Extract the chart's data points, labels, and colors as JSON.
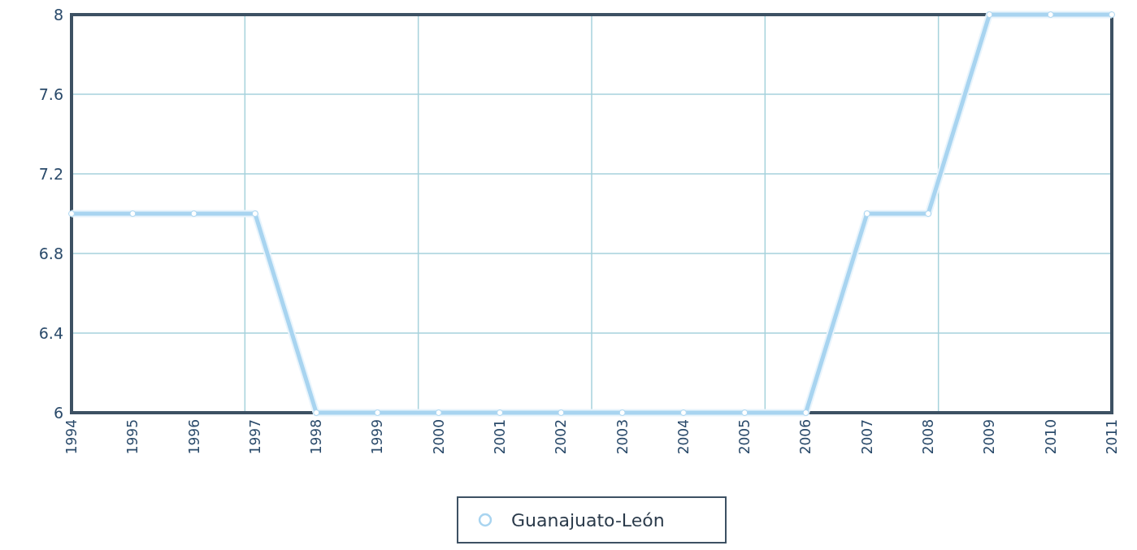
{
  "chart_data": {
    "type": "line",
    "categories": [
      "1994",
      "1995",
      "1996",
      "1997",
      "1998",
      "1999",
      "2000",
      "2001",
      "2002",
      "2003",
      "2004",
      "2005",
      "2006",
      "2007",
      "2008",
      "2009",
      "2010",
      "2011"
    ],
    "series": [
      {
        "name": "Guanajuato-León",
        "color": "#a8d4f0",
        "values": [
          7,
          7,
          7,
          7,
          6,
          6,
          6,
          6,
          6,
          6,
          6,
          6,
          6,
          7,
          7,
          8,
          8,
          8
        ]
      }
    ],
    "ylim": [
      6,
      8
    ],
    "yticks": [
      6,
      6.4,
      6.8,
      7.2,
      7.6,
      8
    ],
    "grid": true,
    "legend": "bottom",
    "marker": "circle"
  }
}
